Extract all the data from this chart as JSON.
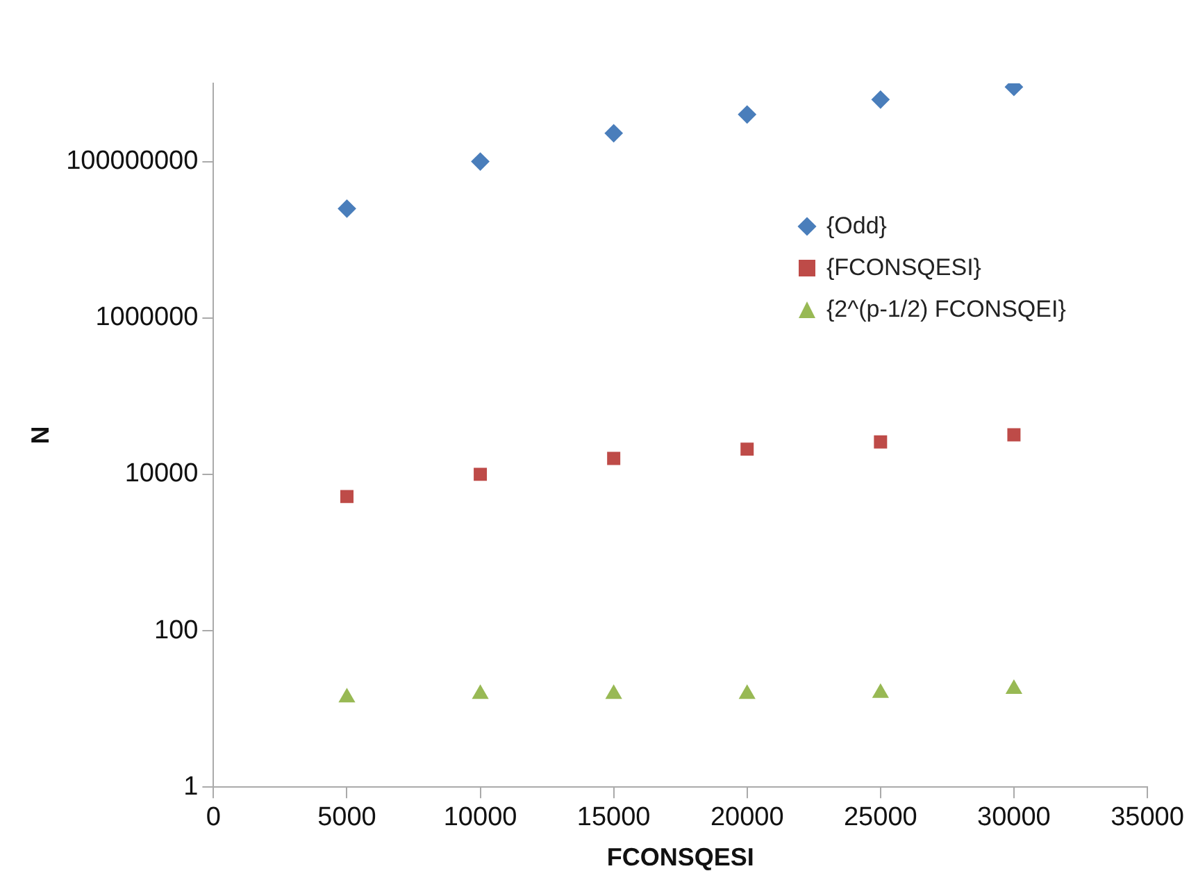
{
  "chart_data": {
    "type": "scatter",
    "xlabel": "FCONSQESI",
    "ylabel": "N",
    "log": "y",
    "grid": false,
    "legend": "right",
    "xlim": [
      0,
      35000
    ],
    "xticks": [
      0,
      5000,
      10000,
      15000,
      20000,
      25000,
      30000,
      35000
    ],
    "ylim": [
      1,
      1000000000
    ],
    "yticks": [
      1,
      100,
      10000,
      1000000,
      100000000
    ],
    "x": [
      5000,
      10000,
      15000,
      20000,
      25000,
      30000
    ],
    "series": [
      {
        "name": "{Odd}",
        "color": "#4a7ebb",
        "marker": "diamond",
        "values": [
          25000000,
          100000000,
          230000000,
          400000000,
          620000000,
          900000000
        ]
      },
      {
        "name": "{FCONSQESI}",
        "color": "#be4b48",
        "marker": "square",
        "values": [
          5200,
          10000,
          16000,
          21000,
          26000,
          32000
        ]
      },
      {
        "name": "{2^(p-1/2) FCONSQEI}",
        "color": "#98b954",
        "marker": "triangle",
        "values": [
          14,
          15.5,
          15.5,
          15.5,
          16,
          18
        ]
      }
    ]
  }
}
